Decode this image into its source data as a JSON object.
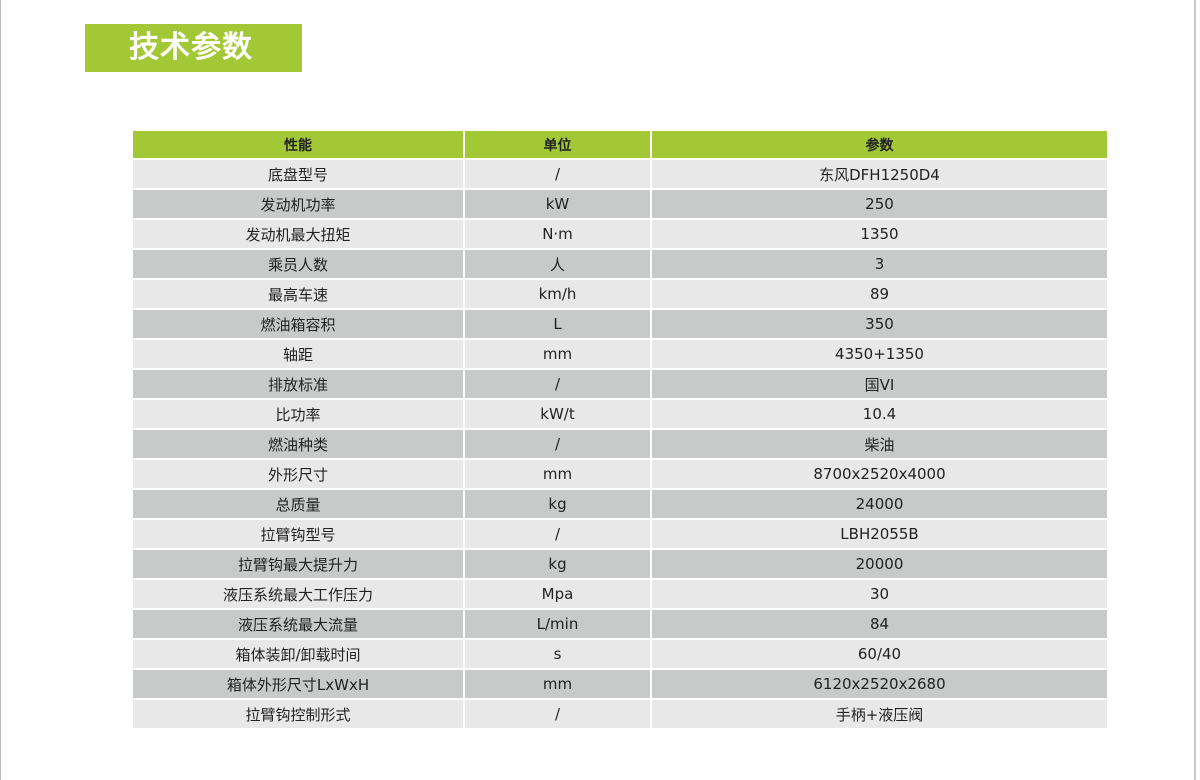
{
  "title": "技术参数",
  "colors": {
    "accent": "#a3c835",
    "row_light": "#e9e8e8",
    "row_dark": "#c8c9c9"
  },
  "table": {
    "headers": [
      "性能",
      "单位",
      "参数"
    ],
    "rows": [
      [
        "底盘型号",
        "/",
        "东风DFH1250D4"
      ],
      [
        "发动机功率",
        "kW",
        "250"
      ],
      [
        "发动机最大扭矩",
        "N·m",
        "1350"
      ],
      [
        "乘员人数",
        "人",
        "3"
      ],
      [
        "最高车速",
        "km/h",
        "89"
      ],
      [
        "燃油箱容积",
        "L",
        "350"
      ],
      [
        "轴距",
        "mm",
        "4350+1350"
      ],
      [
        "排放标准",
        "/",
        "国VI"
      ],
      [
        "比功率",
        "kW/t",
        "10.4"
      ],
      [
        "燃油种类",
        "/",
        "柴油"
      ],
      [
        "外形尺寸",
        "mm",
        "8700x2520x4000"
      ],
      [
        "总质量",
        "kg",
        "24000"
      ],
      [
        "拉臂钩型号",
        "/",
        "LBH2055B"
      ],
      [
        "拉臂钩最大提升力",
        "kg",
        "20000"
      ],
      [
        "液压系统最大工作压力",
        "Mpa",
        "30"
      ],
      [
        "液压系统最大流量",
        "L/min",
        "84"
      ],
      [
        "箱体装卸/卸载时间",
        "s",
        "60/40"
      ],
      [
        "箱体外形尺寸LxWxH",
        "mm",
        "6120x2520x2680"
      ],
      [
        "拉臂钩控制形式",
        "/",
        "手柄+液压阀"
      ]
    ]
  }
}
